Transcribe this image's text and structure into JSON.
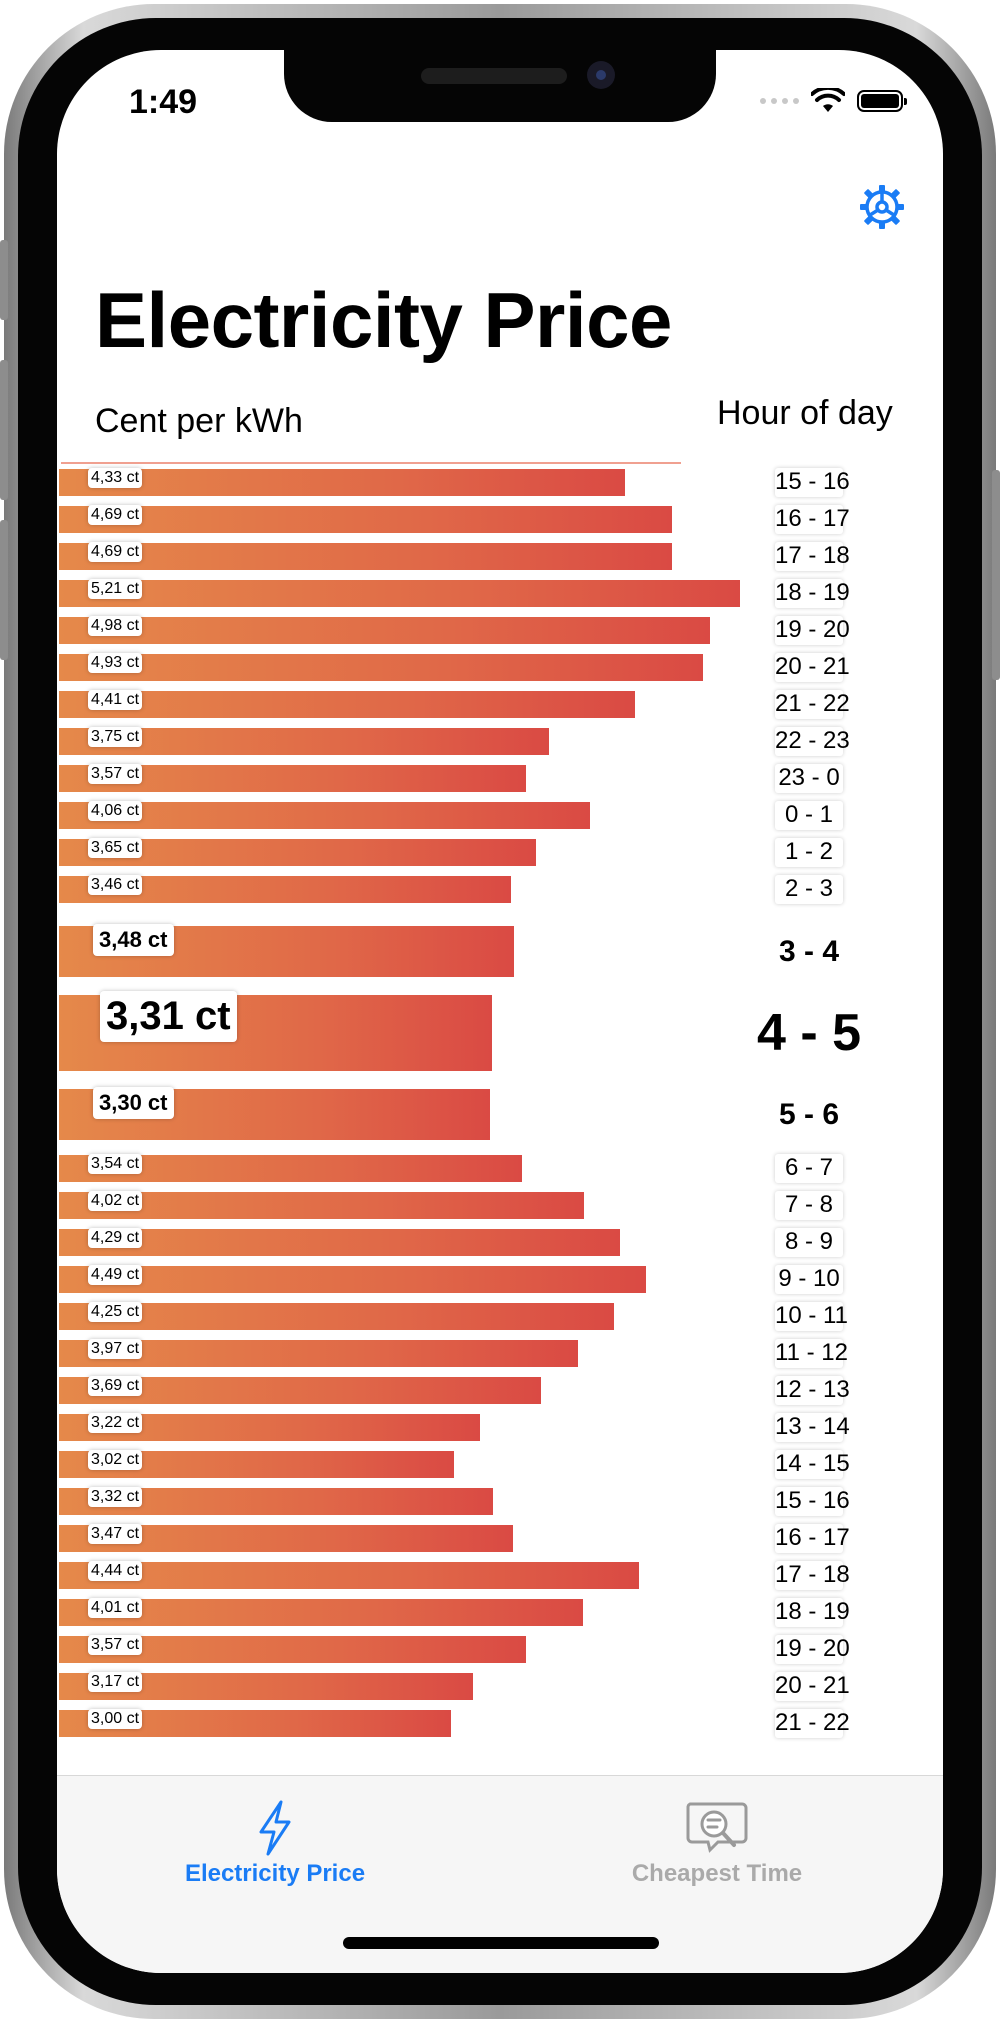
{
  "status_bar": {
    "time": "1:49"
  },
  "header": {
    "title": "Electricity Price"
  },
  "axes": {
    "left_label": "Cent per kWh",
    "right_label": "Hour of day"
  },
  "chart_data": {
    "type": "bar",
    "orientation": "horizontal",
    "unit": "ct",
    "colors": {
      "bar_start": "#e5894a",
      "bar_end": "#da4a44"
    },
    "rows": [
      {
        "value": 4.33,
        "label": "4,33 ct",
        "hour": "15  -  16",
        "size": "small"
      },
      {
        "value": 4.69,
        "label": "4,69 ct",
        "hour": "16  -  17",
        "size": "small"
      },
      {
        "value": 4.69,
        "label": "4,69 ct",
        "hour": "17  -  18",
        "size": "small"
      },
      {
        "value": 5.21,
        "label": "5,21 ct",
        "hour": "18  -  19",
        "size": "small"
      },
      {
        "value": 4.98,
        "label": "4,98 ct",
        "hour": "19  -  20",
        "size": "small"
      },
      {
        "value": 4.93,
        "label": "4,93 ct",
        "hour": "20  -  21",
        "size": "small"
      },
      {
        "value": 4.41,
        "label": "4,41 ct",
        "hour": "21  -  22",
        "size": "small"
      },
      {
        "value": 3.75,
        "label": "3,75 ct",
        "hour": "22  -  23",
        "size": "small"
      },
      {
        "value": 3.57,
        "label": "3,57 ct",
        "hour": "23  -  0",
        "size": "small"
      },
      {
        "value": 4.06,
        "label": "4,06 ct",
        "hour": "0  -  1",
        "size": "small"
      },
      {
        "value": 3.65,
        "label": "3,65 ct",
        "hour": "1  -  2",
        "size": "small"
      },
      {
        "value": 3.46,
        "label": "3,46 ct",
        "hour": "2  -  3",
        "size": "small"
      },
      {
        "value": 3.48,
        "label": "3,48 ct",
        "hour": "3  -  4",
        "size": "medium"
      },
      {
        "value": 3.31,
        "label": "3,31 ct",
        "hour": "4 - 5",
        "size": "large"
      },
      {
        "value": 3.3,
        "label": "3,30 ct",
        "hour": "5  -  6",
        "size": "medium"
      },
      {
        "value": 3.54,
        "label": "3,54 ct",
        "hour": "6  -  7",
        "size": "small"
      },
      {
        "value": 4.02,
        "label": "4,02 ct",
        "hour": "7  -  8",
        "size": "small"
      },
      {
        "value": 4.29,
        "label": "4,29 ct",
        "hour": "8  -  9",
        "size": "small"
      },
      {
        "value": 4.49,
        "label": "4,49 ct",
        "hour": "9  -  10",
        "size": "small"
      },
      {
        "value": 4.25,
        "label": "4,25 ct",
        "hour": "10  -  11",
        "size": "small"
      },
      {
        "value": 3.97,
        "label": "3,97 ct",
        "hour": "11  -  12",
        "size": "small"
      },
      {
        "value": 3.69,
        "label": "3,69 ct",
        "hour": "12  -  13",
        "size": "small"
      },
      {
        "value": 3.22,
        "label": "3,22 ct",
        "hour": "13  -  14",
        "size": "small"
      },
      {
        "value": 3.02,
        "label": "3,02 ct",
        "hour": "14  -  15",
        "size": "small"
      },
      {
        "value": 3.32,
        "label": "3,32 ct",
        "hour": "15  -  16",
        "size": "small"
      },
      {
        "value": 3.47,
        "label": "3,47 ct",
        "hour": "16  -  17",
        "size": "small"
      },
      {
        "value": 4.44,
        "label": "4,44 ct",
        "hour": "17  -  18",
        "size": "small"
      },
      {
        "value": 4.01,
        "label": "4,01 ct",
        "hour": "18  -  19",
        "size": "small"
      },
      {
        "value": 3.57,
        "label": "3,57 ct",
        "hour": "19  -  20",
        "size": "small"
      },
      {
        "value": 3.17,
        "label": "3,17 ct",
        "hour": "20  -  21",
        "size": "small"
      },
      {
        "value": 3.0,
        "label": "3,00 ct",
        "hour": "21  -  22",
        "size": "small"
      }
    ]
  },
  "tab_bar": {
    "tabs": [
      {
        "label": "Electricity Price",
        "icon": "bolt-icon",
        "active": true
      },
      {
        "label": "Cheapest Time",
        "icon": "search-list-icon",
        "active": false
      }
    ],
    "active_color": "#1a7cf5",
    "inactive_color": "#aaaaaa"
  },
  "settings": {
    "icon": "gear-icon",
    "color": "#1a7cf5"
  }
}
